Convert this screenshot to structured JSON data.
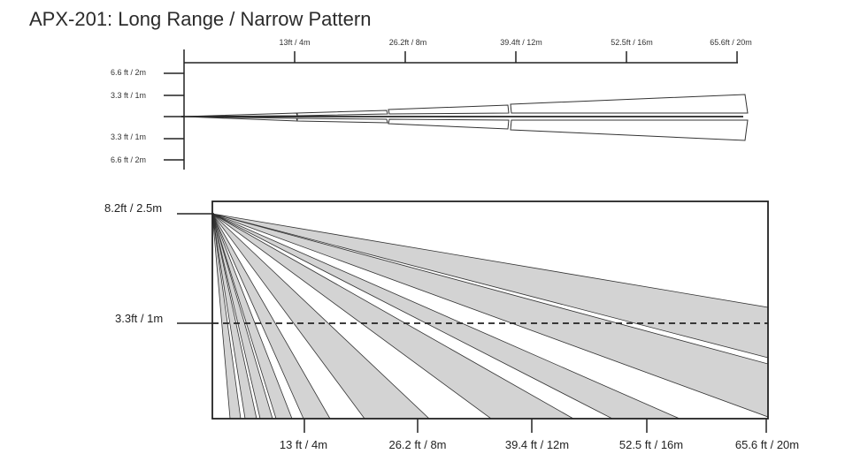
{
  "title": "APX-201: Long Range / Narrow Pattern",
  "top_view": {
    "distance_ticks": [
      "13ft / 4m",
      "26.2ft / 8m",
      "39.4ft / 12m",
      "52.5ft / 16m",
      "65.6ft / 20m"
    ],
    "width_ticks": [
      "6.6 ft / 2m",
      "3.3 ft / 1m",
      "3.3 ft / 1m",
      "6.6 ft / 2m"
    ]
  },
  "side_view": {
    "height_labels": [
      "8.2ft / 2.5m",
      "3.3ft / 1m"
    ],
    "distance_ticks": [
      "13 ft / 4m",
      "26.2 ft / 8m",
      "39.4 ft / 12m",
      "52.5 ft / 16m",
      "65.6 ft / 20m"
    ]
  },
  "colors": {
    "zone_fill": "#d3d3d3",
    "line": "#222222"
  }
}
